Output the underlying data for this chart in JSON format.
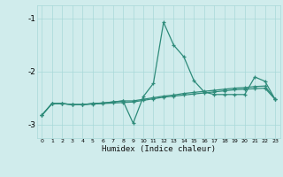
{
  "xlabel": "Humidex (Indice chaleur)",
  "x": [
    0,
    1,
    2,
    3,
    4,
    5,
    6,
    7,
    8,
    9,
    10,
    11,
    12,
    13,
    14,
    15,
    16,
    17,
    18,
    19,
    20,
    21,
    22,
    23
  ],
  "line1": [
    -2.82,
    -2.6,
    -2.6,
    -2.62,
    -2.62,
    -2.6,
    -2.59,
    -2.57,
    -2.55,
    -2.97,
    -2.47,
    -2.22,
    -1.07,
    -1.5,
    -1.72,
    -2.17,
    -2.38,
    -2.43,
    -2.43,
    -2.43,
    -2.43,
    -2.1,
    -2.18,
    -2.52
  ],
  "line2": [
    -2.82,
    -2.6,
    -2.6,
    -2.62,
    -2.62,
    -2.6,
    -2.59,
    -2.57,
    -2.55,
    -2.55,
    -2.52,
    -2.49,
    -2.46,
    -2.44,
    -2.41,
    -2.39,
    -2.37,
    -2.35,
    -2.33,
    -2.31,
    -2.3,
    -2.28,
    -2.27,
    -2.52
  ],
  "line3": [
    -2.82,
    -2.6,
    -2.6,
    -2.62,
    -2.62,
    -2.61,
    -2.6,
    -2.59,
    -2.58,
    -2.57,
    -2.54,
    -2.51,
    -2.48,
    -2.46,
    -2.44,
    -2.42,
    -2.4,
    -2.38,
    -2.36,
    -2.34,
    -2.33,
    -2.32,
    -2.31,
    -2.52
  ],
  "line_color": "#2E8B7A",
  "bg_color": "#D0ECEC",
  "grid_color": "#A8D8D8",
  "ylim": [
    -3.25,
    -0.75
  ],
  "yticks": [
    -3,
    -2,
    -1
  ],
  "xlim": [
    -0.5,
    23.5
  ]
}
